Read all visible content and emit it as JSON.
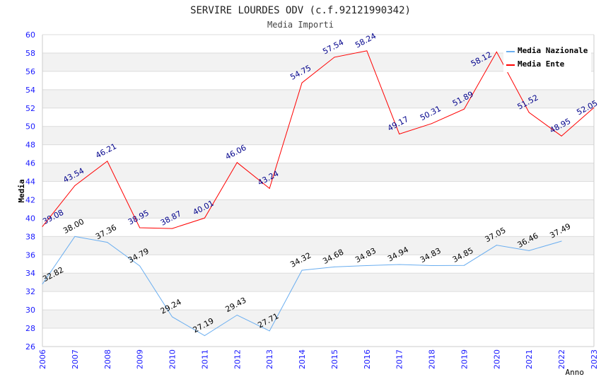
{
  "chart_data": {
    "type": "line",
    "title": "SERVIRE LOURDES ODV (c.f.92121990342)",
    "subtitle": "Media Importi",
    "xlabel": "Anno",
    "ylabel": "Media",
    "ylim": [
      26,
      60
    ],
    "yticks": [
      "26",
      "28",
      "30",
      "32",
      "34",
      "36",
      "38",
      "40",
      "42",
      "44",
      "46",
      "48",
      "50",
      "52",
      "54",
      "56",
      "58",
      "60"
    ],
    "x": [
      "2006",
      "2007",
      "2008",
      "2009",
      "2010",
      "2011",
      "2012",
      "2013",
      "2014",
      "2015",
      "2016",
      "2017",
      "2018",
      "2019",
      "2020",
      "2021",
      "2022",
      "2023"
    ],
    "legend_position": "top-right",
    "series": [
      {
        "name": "Media Nazionale",
        "color": "#6aaef0",
        "label_color": "#000000",
        "values": [
          32.82,
          38.0,
          37.36,
          34.79,
          29.24,
          27.19,
          29.43,
          27.71,
          34.32,
          34.68,
          34.83,
          34.94,
          34.83,
          34.85,
          37.05,
          36.46,
          37.49,
          null
        ],
        "labels": [
          "32.82",
          "38.00",
          "37.36",
          "34.79",
          "29.24",
          "27.19",
          "29.43",
          "27.71",
          "34.32",
          "34.68",
          "34.83",
          "34.94",
          "34.83",
          "34.85",
          "37.05",
          "36.46",
          "37.49",
          null
        ]
      },
      {
        "name": "Media Ente",
        "color": "#ff0000",
        "label_color": "#00008b",
        "values": [
          39.08,
          43.54,
          46.21,
          38.95,
          38.87,
          40.01,
          46.06,
          43.24,
          54.75,
          57.54,
          58.24,
          49.17,
          50.31,
          51.89,
          58.12,
          51.52,
          48.95,
          52.05
        ],
        "labels": [
          "39.08",
          "43.54",
          "46.21",
          "38.95",
          "38.87",
          "40.01",
          "46.06",
          "43.24",
          "54.75",
          "57.54",
          "58.24",
          "49.17",
          "50.31",
          "51.89",
          "58.12",
          "51.52",
          "48.95",
          "52.05"
        ]
      }
    ]
  }
}
